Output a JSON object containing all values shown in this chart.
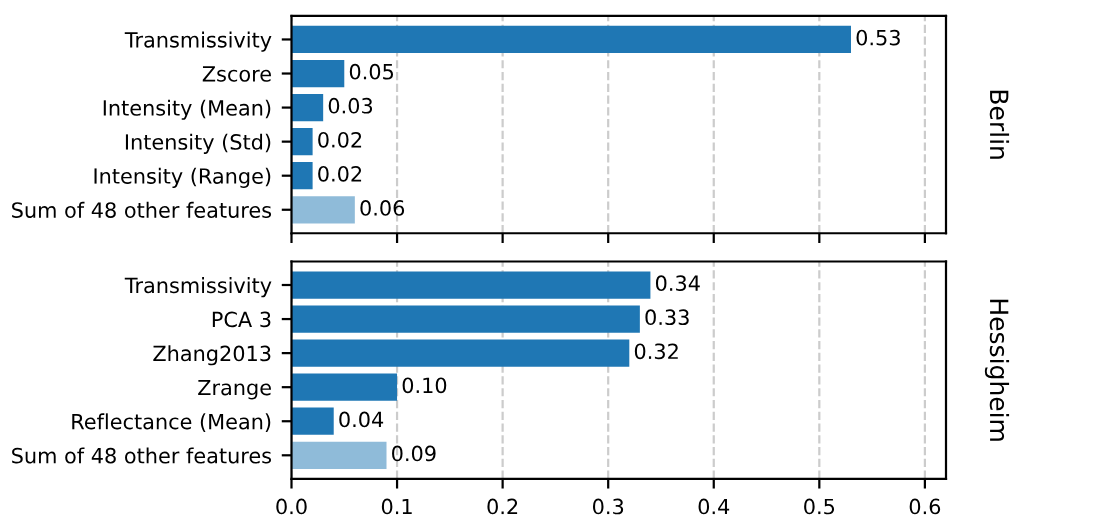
{
  "chart_data": [
    {
      "type": "bar",
      "orientation": "horizontal",
      "ylabel": "Berlin",
      "categories": [
        "Transmissivity",
        "Zscore",
        "Intensity (Mean)",
        "Intensity (Std)",
        "Intensity (Range)",
        "Sum of 48 other features"
      ],
      "values": [
        0.53,
        0.05,
        0.03,
        0.02,
        0.02,
        0.06
      ],
      "value_labels": [
        "0.53",
        "0.05",
        "0.03",
        "0.02",
        "0.02",
        "0.06"
      ],
      "colors": [
        "#1f77b4",
        "#1f77b4",
        "#1f77b4",
        "#1f77b4",
        "#1f77b4",
        "#8fbbd9"
      ],
      "xlim": [
        0,
        0.62
      ],
      "xticks": [
        0,
        0.1,
        0.2,
        0.3,
        0.4,
        0.5,
        0.6
      ],
      "grid": "x",
      "tick_labels": "y"
    },
    {
      "type": "bar",
      "orientation": "horizontal",
      "ylabel": "Hessigheim",
      "categories": [
        "Transmissivity",
        "PCA 3",
        "Zhang2013",
        "Zrange",
        "Reflectance (Mean)",
        "Sum of 48 other features"
      ],
      "values": [
        0.34,
        0.33,
        0.32,
        0.1,
        0.04,
        0.09
      ],
      "value_labels": [
        "0.34",
        "0.33",
        "0.32",
        "0.10",
        "0.04",
        "0.09"
      ],
      "colors": [
        "#1f77b4",
        "#1f77b4",
        "#1f77b4",
        "#1f77b4",
        "#1f77b4",
        "#8fbbd9"
      ],
      "xlim": [
        0,
        0.62
      ],
      "xticks": [
        {
          "value": 0,
          "label": "0.0"
        },
        0.1,
        0.2,
        0.3,
        0.4,
        0.5,
        0.6
      ],
      "grid": "x"
    }
  ]
}
